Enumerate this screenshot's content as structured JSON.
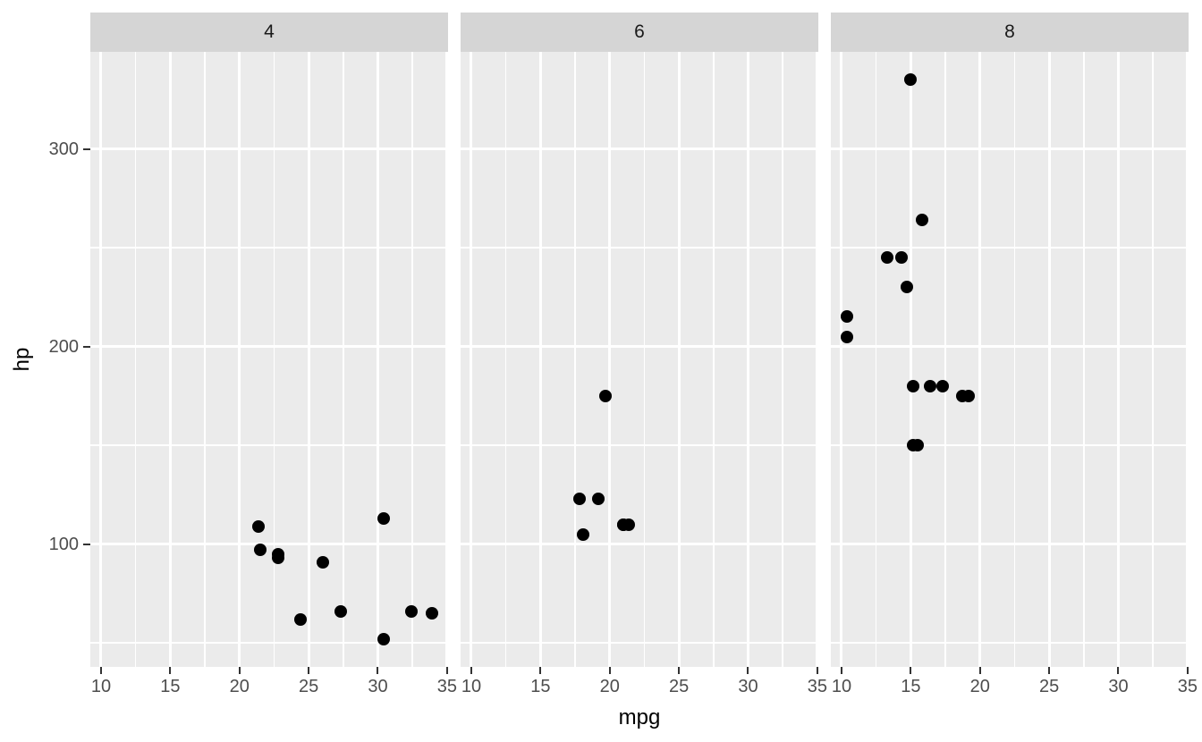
{
  "chart_data": {
    "type": "scatter",
    "title": "",
    "xlabel": "mpg",
    "ylabel": "hp",
    "facet_labels": [
      "4",
      "6",
      "8"
    ],
    "facets": [
      {
        "label": "4",
        "points": [
          [
            21.4,
            109
          ],
          [
            21.5,
            97
          ],
          [
            22.8,
            93
          ],
          [
            22.8,
            95
          ],
          [
            24.4,
            62
          ],
          [
            26.0,
            91
          ],
          [
            27.3,
            66
          ],
          [
            30.4,
            52
          ],
          [
            30.4,
            113
          ],
          [
            32.4,
            66
          ],
          [
            33.9,
            65
          ]
        ]
      },
      {
        "label": "6",
        "points": [
          [
            17.8,
            123
          ],
          [
            18.1,
            105
          ],
          [
            19.2,
            123
          ],
          [
            19.7,
            175
          ],
          [
            21.0,
            110
          ],
          [
            21.0,
            110
          ],
          [
            21.4,
            110
          ]
        ]
      },
      {
        "label": "8",
        "points": [
          [
            10.4,
            205
          ],
          [
            10.4,
            215
          ],
          [
            13.3,
            245
          ],
          [
            14.3,
            245
          ],
          [
            14.7,
            230
          ],
          [
            15.0,
            335
          ],
          [
            15.2,
            150
          ],
          [
            15.2,
            180
          ],
          [
            15.5,
            150
          ],
          [
            15.8,
            264
          ],
          [
            16.4,
            180
          ],
          [
            17.3,
            180
          ],
          [
            18.7,
            175
          ],
          [
            19.2,
            175
          ]
        ]
      }
    ],
    "x_ticks": [
      10,
      15,
      20,
      25,
      30,
      35
    ],
    "y_ticks": [
      100,
      200,
      300
    ],
    "x_minor_ticks": [
      12.5,
      17.5,
      22.5,
      27.5,
      32.5
    ],
    "y_minor_ticks": [
      50,
      150,
      250,
      350
    ],
    "xlim": [
      9.225,
      35.075
    ],
    "ylim": [
      37.85,
      349.15
    ],
    "grid": "major+minor white on grey panel",
    "legend": "none",
    "point_radius_px": 7,
    "colors": {
      "page_background": "#FFFFFF",
      "panel_background": "#EBEBEB",
      "strip_background": "#D5D5D5",
      "grid_line": "#FFFFFF",
      "point": "#000000",
      "tick_label": "#4D4D4D",
      "tick_mark": "#333333",
      "strip_label": "#1A1A1A",
      "axis_title": "#000000"
    }
  }
}
